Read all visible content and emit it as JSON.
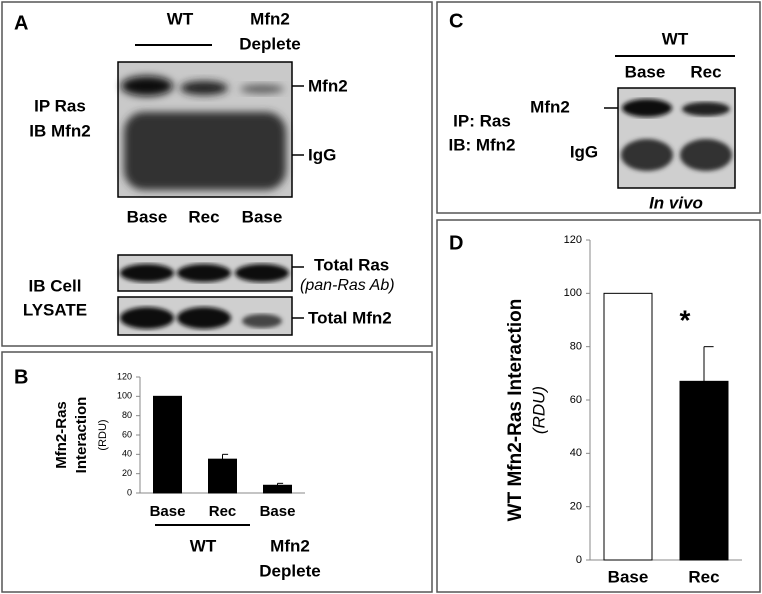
{
  "panels": {
    "a": {
      "letter": "A",
      "wt": "WT",
      "deplete": [
        "Mfn2",
        "Deplete"
      ],
      "ip": [
        "IP Ras",
        "IB Mfn2"
      ],
      "bands": [
        "Mfn2",
        "IgG"
      ],
      "lanes": [
        "Base",
        "Rec",
        "Base"
      ],
      "lysate": [
        "IB Cell",
        "LYSATE"
      ],
      "lysate_bands": [
        "Total Ras",
        "(pan-Ras Ab)",
        "Total Mfn2"
      ]
    },
    "c": {
      "letter": "C",
      "wt": "WT",
      "lanes": [
        "Base",
        "Rec"
      ],
      "ip": [
        "IP: Ras",
        "IB: Mfn2"
      ],
      "bands": [
        "Mfn2",
        "IgG"
      ],
      "note": "In vivo"
    }
  },
  "chart_data": [
    {
      "type": "bar",
      "panel": "B",
      "ylabel": [
        "Mfn2-Ras",
        "Interaction"
      ],
      "yunit": "(RDU)",
      "categories": [
        "Base",
        "Rec",
        "Base"
      ],
      "values": [
        100,
        35,
        8
      ],
      "errors": [
        null,
        5,
        2
      ],
      "color": "#000000",
      "group_labels": [
        [
          "WT"
        ],
        [
          "Mfn2",
          "Deplete"
        ]
      ],
      "ylim": [
        0,
        120
      ],
      "yticks": [
        0,
        20,
        40,
        60,
        80,
        100,
        120
      ]
    },
    {
      "type": "bar",
      "panel": "D",
      "ylabel": [
        "WT Mfn2-Ras Interaction"
      ],
      "yunit": "(RDU)",
      "categories": [
        "Base",
        "Rec"
      ],
      "values": [
        100,
        67
      ],
      "errors": [
        null,
        13
      ],
      "colors": [
        "#ffffff",
        "#000000"
      ],
      "annotation": "*",
      "ylim": [
        0,
        120
      ],
      "yticks": [
        0,
        20,
        40,
        60,
        80,
        100,
        120
      ]
    }
  ]
}
